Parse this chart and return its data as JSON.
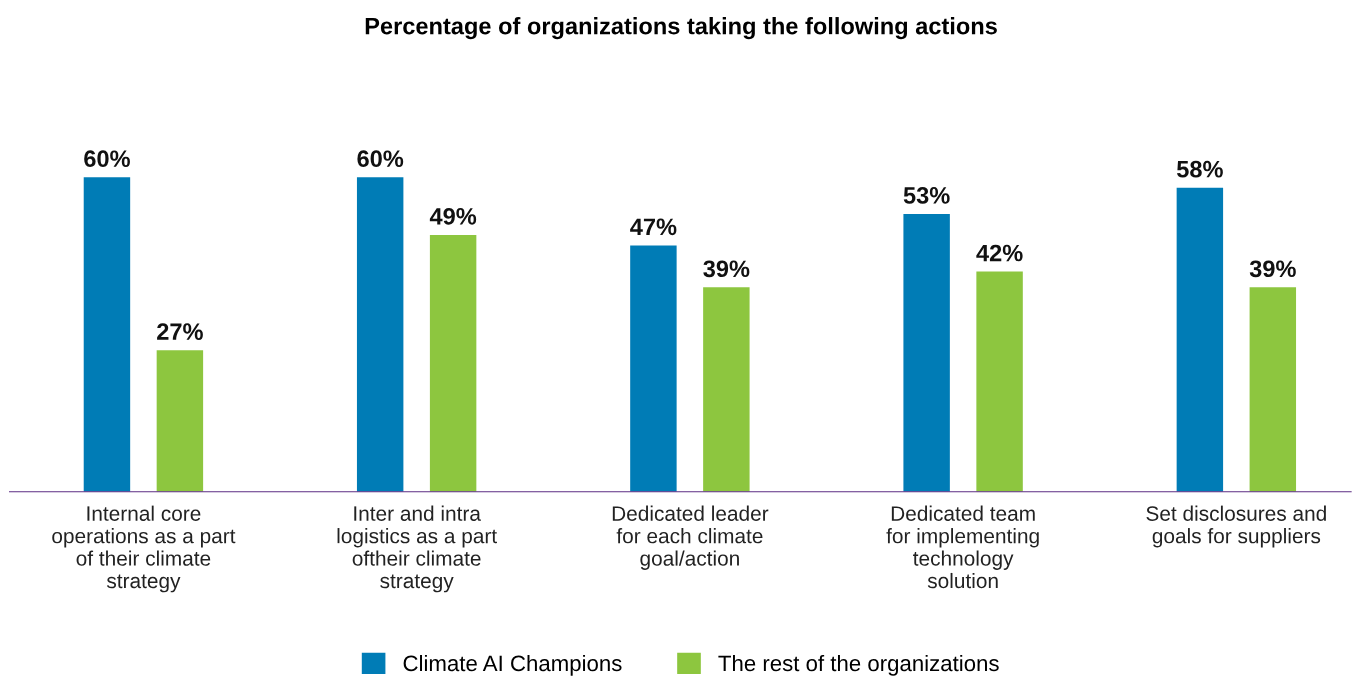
{
  "chart_data": {
    "type": "bar",
    "title": "Percentage of organizations taking the following actions",
    "categories": [
      "Internal core\noperations as a part\nof their climate\nstrategy",
      "Inter and intra\nlogistics as a part\noftheir climate\nstrategy",
      "Dedicated leader\nfor each climate\ngoal/action",
      "Dedicated team\nfor implementing\ntechnology\nsolution",
      "Set disclosures and\ngoals for suppliers"
    ],
    "series": [
      {
        "name": "Climate AI Champions",
        "color": "#007cb6",
        "values": [
          60,
          60,
          47,
          53,
          58
        ],
        "value_labels": [
          "60%",
          "60%",
          "47%",
          "53%",
          "58%"
        ]
      },
      {
        "name": "The rest of the organizations",
        "color": "#8dc63f",
        "values": [
          27,
          49,
          39,
          42,
          39
        ],
        "value_labels": [
          "27%",
          "49%",
          "39%",
          "42%",
          "39%"
        ]
      }
    ],
    "tick_labels": "x",
    "grid": false,
    "legend": "bottom"
  }
}
